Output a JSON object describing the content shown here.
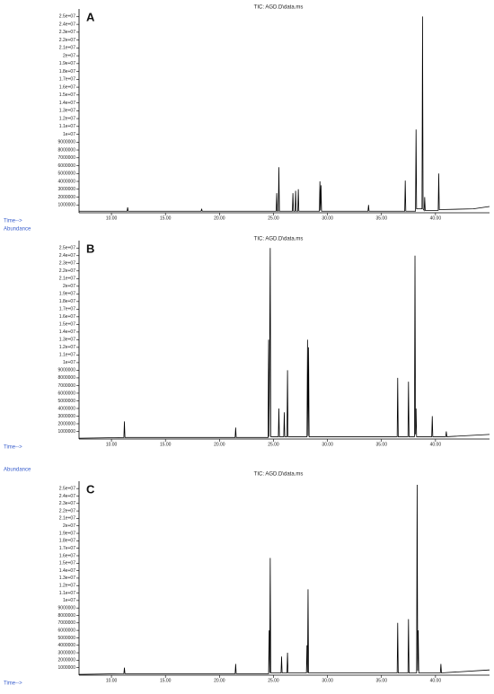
{
  "chart_data": [
    {
      "type": "line",
      "panel_label": "A",
      "title": "TIC: AGD.D\\data.ms",
      "x_label": "Time-->",
      "color": "#000000",
      "grid": false,
      "xlim": [
        7,
        45
      ],
      "ylim": [
        0,
        25500000
      ],
      "xticks": [
        {
          "value": 10,
          "label": "10.00"
        },
        {
          "value": 15,
          "label": "15.00"
        },
        {
          "value": 20,
          "label": "20.00"
        },
        {
          "value": 25,
          "label": "25.00"
        },
        {
          "value": 30,
          "label": "30.00"
        },
        {
          "value": 35,
          "label": "35.00"
        },
        {
          "value": 40,
          "label": "40.00"
        }
      ],
      "yticks": [
        1000000,
        2000000,
        3000000,
        4000000,
        5000000,
        6000000,
        7000000,
        8000000,
        9000000,
        {
          "value": 10000000,
          "label": "1e+07"
        },
        {
          "value": 11000000,
          "label": "1.1e+07"
        },
        {
          "value": 12000000,
          "label": "1.2e+07"
        },
        {
          "value": 13000000,
          "label": "1.3e+07"
        },
        {
          "value": 14000000,
          "label": "1.4e+07"
        },
        {
          "value": 15000000,
          "label": "1.5e+07"
        },
        {
          "value": 16000000,
          "label": "1.6e+07"
        },
        {
          "value": 17000000,
          "label": "1.7e+07"
        },
        {
          "value": 18000000,
          "label": "1.8e+07"
        },
        {
          "value": 19000000,
          "label": "1.9e+07"
        },
        {
          "value": 20000000,
          "label": "2e+07"
        },
        {
          "value": 21000000,
          "label": "2.1e+07"
        },
        {
          "value": 22000000,
          "label": "2.2e+07"
        },
        {
          "value": 23000000,
          "label": "2.3e+07"
        },
        {
          "value": 24000000,
          "label": "2.4e+07"
        },
        {
          "value": 25000000,
          "label": "2.5e+07"
        }
      ],
      "x": [
        7,
        11.45,
        11.5,
        11.55,
        18.3,
        18.35,
        18.4,
        25.25,
        25.3,
        25.35,
        25.45,
        25.5,
        25.55,
        26.75,
        26.8,
        26.85,
        27.0,
        27.05,
        27.1,
        27.25,
        27.3,
        27.35,
        29.25,
        29.3,
        29.35,
        29.4,
        29.45,
        33.75,
        33.8,
        33.85,
        37.15,
        37.2,
        37.25,
        38.15,
        38.2,
        38.25,
        38.75,
        38.8,
        38.85,
        38.95,
        39.0,
        39.05,
        40.25,
        40.3,
        40.35,
        43.5,
        45
      ],
      "values": [
        200000,
        200000,
        700000,
        200000,
        200000,
        500000,
        200000,
        200000,
        2500000,
        200000,
        200000,
        5800000,
        200000,
        200000,
        2500000,
        200000,
        200000,
        2800000,
        200000,
        200000,
        3000000,
        200000,
        200000,
        4000000,
        300000,
        3500000,
        200000,
        200000,
        1000000,
        200000,
        200000,
        4100000,
        200000,
        200000,
        10600000,
        500000,
        500000,
        25000000,
        500000,
        300000,
        2000000,
        300000,
        300000,
        5000000,
        400000,
        500000,
        800000
      ]
    },
    {
      "type": "line",
      "panel_label": "B",
      "title": "TIC: AGD.D\\data.ms",
      "x_label": "Time-->",
      "y_label": "Abundance",
      "color": "#000000",
      "grid": false,
      "xlim": [
        7,
        45
      ],
      "ylim": [
        0,
        25500000
      ],
      "xticks": [
        {
          "value": 10,
          "label": "10.00"
        },
        {
          "value": 15,
          "label": "15.00"
        },
        {
          "value": 20,
          "label": "20.00"
        },
        {
          "value": 25,
          "label": "25.00"
        },
        {
          "value": 30,
          "label": "30.00"
        },
        {
          "value": 35,
          "label": "35.00"
        },
        {
          "value": 40,
          "label": "40.00"
        }
      ],
      "yticks": [
        1000000,
        2000000,
        3000000,
        4000000,
        5000000,
        6000000,
        7000000,
        8000000,
        9000000,
        {
          "value": 10000000,
          "label": "1e+07"
        },
        {
          "value": 11000000,
          "label": "1.1e+07"
        },
        {
          "value": 12000000,
          "label": "1.2e+07"
        },
        {
          "value": 13000000,
          "label": "1.3e+07"
        },
        {
          "value": 14000000,
          "label": "1.4e+07"
        },
        {
          "value": 15000000,
          "label": "1.5e+07"
        },
        {
          "value": 16000000,
          "label": "1.6e+07"
        },
        {
          "value": 17000000,
          "label": "1.7e+07"
        },
        {
          "value": 18000000,
          "label": "1.8e+07"
        },
        {
          "value": 19000000,
          "label": "1.9e+07"
        },
        {
          "value": 20000000,
          "label": "2e+07"
        },
        {
          "value": 21000000,
          "label": "2.1e+07"
        },
        {
          "value": 22000000,
          "label": "2.2e+07"
        },
        {
          "value": 23000000,
          "label": "2.3e+07"
        },
        {
          "value": 24000000,
          "label": "2.4e+07"
        },
        {
          "value": 25000000,
          "label": "2.5e+07"
        }
      ],
      "x": [
        7,
        11.15,
        11.2,
        11.25,
        21.45,
        21.5,
        21.55,
        24.5,
        24.55,
        24.6,
        24.7,
        24.75,
        25.45,
        25.5,
        25.55,
        25.95,
        26.0,
        26.05,
        26.25,
        26.3,
        26.35,
        28.1,
        28.15,
        28.2,
        28.25,
        28.3,
        36.45,
        36.5,
        36.55,
        37.45,
        37.5,
        37.55,
        38.05,
        38.1,
        38.15,
        38.2,
        38.25,
        39.65,
        39.7,
        39.75,
        40.95,
        41.0,
        41.05,
        45
      ],
      "values": [
        100000,
        200000,
        2300000,
        200000,
        200000,
        1500000,
        200000,
        200000,
        13000000,
        300000,
        25000000,
        300000,
        300000,
        4000000,
        300000,
        300000,
        3500000,
        300000,
        300000,
        9000000,
        300000,
        300000,
        13000000,
        400000,
        12000000,
        300000,
        300000,
        8000000,
        300000,
        300000,
        7500000,
        300000,
        300000,
        24000000,
        600000,
        4000000,
        300000,
        300000,
        3000000,
        300000,
        300000,
        1000000,
        300000,
        600000
      ]
    },
    {
      "type": "line",
      "panel_label": "C",
      "title": "TIC: AGD.D\\data.ms",
      "x_label": "Time-->",
      "y_label": "Abundance",
      "color": "#000000",
      "grid": false,
      "xlim": [
        7,
        45
      ],
      "ylim": [
        0,
        25500000
      ],
      "xticks": [
        {
          "value": 10,
          "label": "10.00"
        },
        {
          "value": 15,
          "label": "15.00"
        },
        {
          "value": 20,
          "label": "20.00"
        },
        {
          "value": 25,
          "label": "25.00"
        },
        {
          "value": 30,
          "label": "30.00"
        },
        {
          "value": 35,
          "label": "35.00"
        },
        {
          "value": 40,
          "label": "40.00"
        }
      ],
      "yticks": [
        1000000,
        2000000,
        3000000,
        4000000,
        5000000,
        6000000,
        7000000,
        8000000,
        9000000,
        {
          "value": 10000000,
          "label": "1e+07"
        },
        {
          "value": 11000000,
          "label": "1.1e+07"
        },
        {
          "value": 12000000,
          "label": "1.2e+07"
        },
        {
          "value": 13000000,
          "label": "1.3e+07"
        },
        {
          "value": 14000000,
          "label": "1.4e+07"
        },
        {
          "value": 15000000,
          "label": "1.5e+07"
        },
        {
          "value": 16000000,
          "label": "1.6e+07"
        },
        {
          "value": 17000000,
          "label": "1.7e+07"
        },
        {
          "value": 18000000,
          "label": "1.8e+07"
        },
        {
          "value": 19000000,
          "label": "1.9e+07"
        },
        {
          "value": 20000000,
          "label": "2e+07"
        },
        {
          "value": 21000000,
          "label": "2.1e+07"
        },
        {
          "value": 22000000,
          "label": "2.2e+07"
        },
        {
          "value": 23000000,
          "label": "2.3e+07"
        },
        {
          "value": 24000000,
          "label": "2.4e+07"
        },
        {
          "value": 25000000,
          "label": "2.5e+07"
        }
      ],
      "x": [
        7,
        11.15,
        11.2,
        11.25,
        21.45,
        21.5,
        21.55,
        24.55,
        24.6,
        24.65,
        24.7,
        24.75,
        25.7,
        25.75,
        25.8,
        26.25,
        26.3,
        26.35,
        28.05,
        28.1,
        28.15,
        28.2,
        28.25,
        36.45,
        36.5,
        36.55,
        37.45,
        37.5,
        37.55,
        38.25,
        38.3,
        38.35,
        38.4,
        38.45,
        40.45,
        40.5,
        40.55,
        45
      ],
      "values": [
        100000,
        200000,
        1000000,
        200000,
        200000,
        1500000,
        200000,
        200000,
        6000000,
        300000,
        15700000,
        300000,
        300000,
        2500000,
        300000,
        300000,
        3000000,
        300000,
        300000,
        4000000,
        300000,
        11500000,
        300000,
        300000,
        7000000,
        300000,
        300000,
        7500000,
        300000,
        300000,
        25500000,
        600000,
        6000000,
        300000,
        300000,
        1500000,
        300000,
        700000
      ]
    }
  ]
}
